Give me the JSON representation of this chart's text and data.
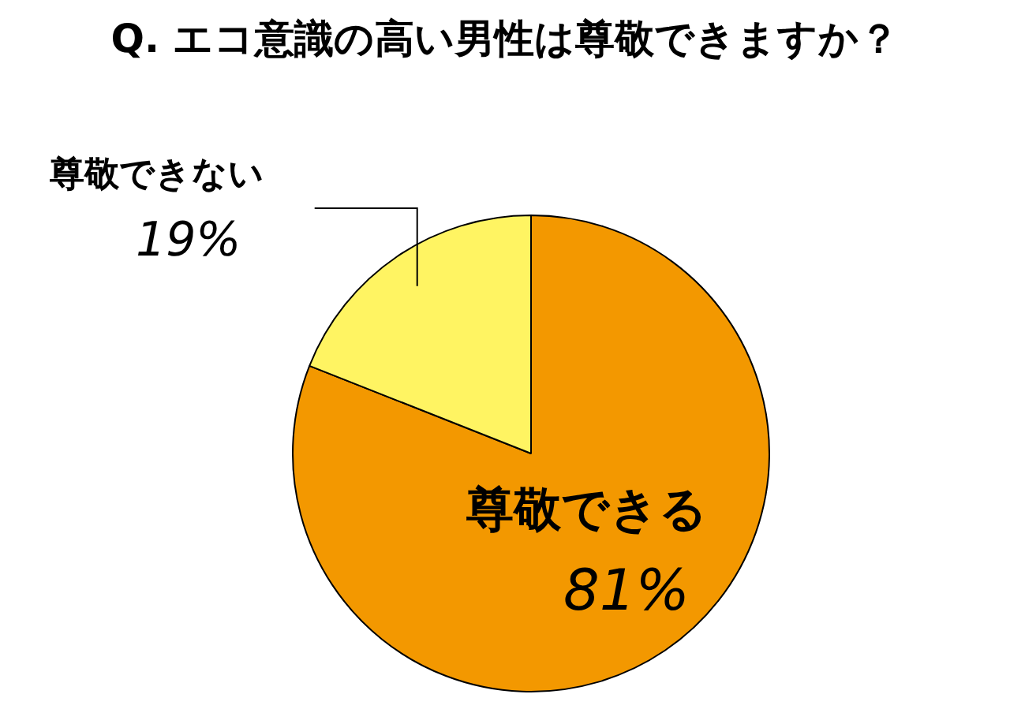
{
  "chart_data": {
    "type": "pie",
    "title": "Q. エコ意識の高い男性は尊敬できますか？",
    "categories": [
      "尊敬できる",
      "尊敬できない"
    ],
    "values": [
      81,
      19
    ],
    "value_labels": [
      "81%",
      "19%"
    ],
    "colors": [
      "#f39800",
      "#fff462"
    ],
    "legend": false
  }
}
